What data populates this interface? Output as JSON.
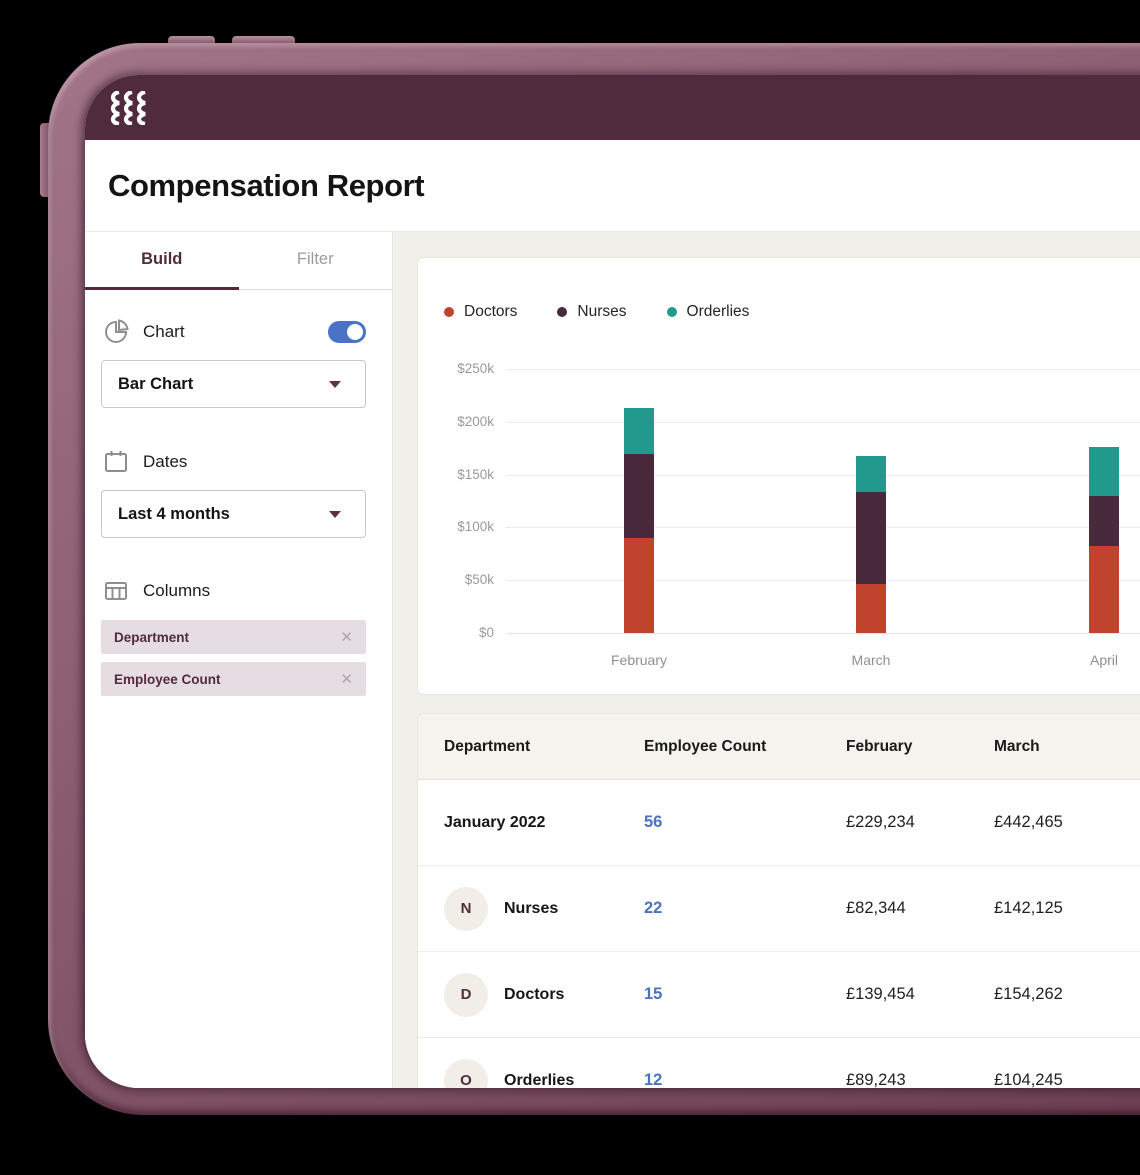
{
  "app": {
    "title": "Compensation Report",
    "brand": "Rippling"
  },
  "sidebar": {
    "tabs": [
      {
        "label": "Build",
        "active": true
      },
      {
        "label": "Filter",
        "active": false
      }
    ],
    "chart_section": {
      "label": "Chart",
      "toggle_on": true,
      "select_value": "Bar Chart"
    },
    "dates_section": {
      "label": "Dates",
      "select_value": "Last 4 months"
    },
    "columns_section": {
      "label": "Columns",
      "chips": [
        {
          "label": "Department"
        },
        {
          "label": "Employee Count"
        }
      ]
    }
  },
  "chart_data": {
    "type": "bar",
    "stacked": true,
    "categories": [
      "February",
      "March",
      "April"
    ],
    "series": [
      {
        "name": "Doctors",
        "color": "#c0432e",
        "values": [
          90,
          46,
          82
        ]
      },
      {
        "name": "Nurses",
        "color": "#492a3c",
        "values": [
          80,
          88,
          48
        ]
      },
      {
        "name": "Orderlies",
        "color": "#21998c",
        "values": [
          43,
          34,
          46
        ]
      }
    ],
    "unit": "USD thousands",
    "yticks": [
      "$250k",
      "$200k",
      "$150k",
      "$100k",
      "$50k",
      "$0"
    ],
    "ylim": [
      0,
      250
    ],
    "grid": true,
    "legend_position": "top-left"
  },
  "table": {
    "columns": [
      "Department",
      "Employee Count",
      "February",
      "March"
    ],
    "rows": [
      {
        "department": "January 2022",
        "avatar": "",
        "employee_count": "56",
        "february": "£229,234",
        "march": "£442,465"
      },
      {
        "department": "Nurses",
        "avatar": "N",
        "employee_count": "22",
        "february": "£82,344",
        "march": "£142,125"
      },
      {
        "department": "Doctors",
        "avatar": "D",
        "employee_count": "15",
        "february": "£139,454",
        "march": "£154,262"
      },
      {
        "department": "Orderlies",
        "avatar": "O",
        "employee_count": "12",
        "february": "£89,243",
        "march": "£104,245"
      }
    ]
  },
  "colors": {
    "topbar": "#502b3d",
    "accent_maroon": "#512b3d",
    "frame_mauve": "#8a5c6f",
    "toggle_blue": "#4a72c9",
    "count_blue": "#4a72bd",
    "doctors": "#c0432e",
    "nurses": "#492a3c",
    "orderlies": "#21998c",
    "background_beige": "#f2f0ea"
  }
}
